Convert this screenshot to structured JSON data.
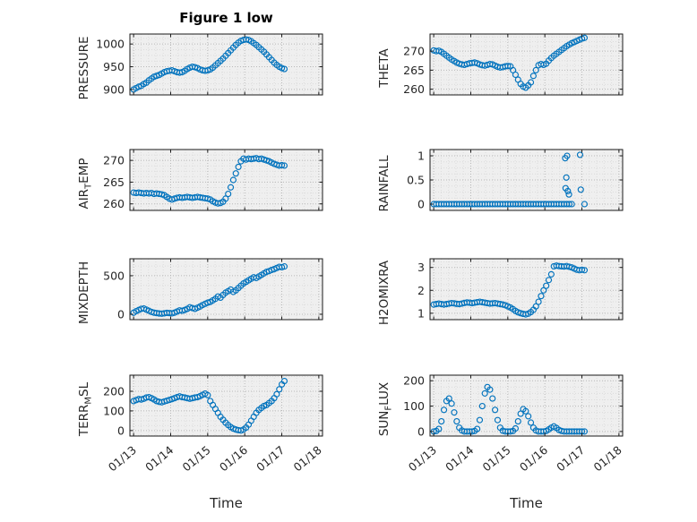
{
  "figure": {
    "title": "Figure 1 low",
    "x_axis_label": "Time",
    "marker_color": "#0072BD",
    "plot_bg": "#efefef",
    "xlim": [
      12.9,
      18.1
    ],
    "xticks": [
      13,
      14,
      15,
      16,
      17,
      18
    ],
    "xticklabels": [
      "01/13",
      "01/14",
      "01/15",
      "01/16",
      "01/17",
      "01/18"
    ]
  },
  "time_days": [
    13.0,
    13.069,
    13.138,
    13.207,
    13.276,
    13.345,
    13.414,
    13.483,
    13.552,
    13.621,
    13.69,
    13.759,
    13.828,
    13.897,
    13.966,
    14.035,
    14.104,
    14.173,
    14.242,
    14.311,
    14.38,
    14.449,
    14.518,
    14.587,
    14.656,
    14.725,
    14.794,
    14.863,
    14.932,
    15.001,
    15.07,
    15.139,
    15.208,
    15.277,
    15.346,
    15.415,
    15.484,
    15.553,
    15.622,
    15.691,
    15.76,
    15.829,
    15.898,
    15.967,
    16.036,
    16.105,
    16.174,
    16.243,
    16.312,
    16.381,
    16.45,
    16.519,
    16.588,
    16.657,
    16.726,
    16.795,
    16.864,
    16.933,
    17.002,
    17.071
  ],
  "chart_data": [
    {
      "type": "scatter",
      "ylabel": "PRESSURE",
      "row": 0,
      "col": 0,
      "ylim": [
        888,
        1022
      ],
      "yticks": [
        900,
        950,
        1000
      ],
      "y": [
        900,
        903,
        906,
        908,
        912,
        915,
        920,
        924,
        928,
        930,
        932,
        935,
        938,
        940,
        941,
        942,
        940,
        938,
        937,
        938,
        941,
        945,
        948,
        950,
        949,
        947,
        944,
        942,
        941,
        942,
        944,
        948,
        953,
        958,
        963,
        968,
        974,
        980,
        986,
        992,
        998,
        1003,
        1007,
        1009,
        1010,
        1009,
        1006,
        1002,
        998,
        993,
        988,
        983,
        977,
        971,
        965,
        959,
        954,
        950,
        947,
        945
      ]
    },
    {
      "type": "scatter",
      "ylabel": "THETA",
      "row": 0,
      "col": 1,
      "ylim": [
        258.5,
        274.5
      ],
      "yticks": [
        260,
        265,
        270
      ],
      "y": [
        270.2,
        270.0,
        270.1,
        269.8,
        269.3,
        268.8,
        268.3,
        267.8,
        267.4,
        267.0,
        266.7,
        266.5,
        266.4,
        266.6,
        266.8,
        266.9,
        267.0,
        266.8,
        266.5,
        266.3,
        266.2,
        266.4,
        266.6,
        266.5,
        266.2,
        265.9,
        265.7,
        265.8,
        266.0,
        266.1,
        266.0,
        265.0,
        263.8,
        262.5,
        261.4,
        260.7,
        260.4,
        261.0,
        261.8,
        263.5,
        265.0,
        266.3,
        266.6,
        266.4,
        266.7,
        267.5,
        268.2,
        268.8,
        269.3,
        269.8,
        270.3,
        270.8,
        271.3,
        271.7,
        272.1,
        272.4,
        272.7,
        273.0,
        273.3,
        273.5
      ]
    },
    {
      "type": "scatter",
      "ylabel": "AIR_TEMP",
      "row": 1,
      "col": 0,
      "ylim": [
        258.5,
        272.5
      ],
      "yticks": [
        260,
        265,
        270
      ],
      "y": [
        262.6,
        262.5,
        262.6,
        262.5,
        262.4,
        262.5,
        262.4,
        262.5,
        262.3,
        262.4,
        262.3,
        262.2,
        262.0,
        261.6,
        261.2,
        261.0,
        261.2,
        261.4,
        261.5,
        261.4,
        261.5,
        261.6,
        261.5,
        261.4,
        261.5,
        261.6,
        261.5,
        261.4,
        261.3,
        261.2,
        261.0,
        260.6,
        260.3,
        260.1,
        260.2,
        260.5,
        261.2,
        262.3,
        263.8,
        265.5,
        267.0,
        268.5,
        269.8,
        270.4,
        270.2,
        270.4,
        270.3,
        270.4,
        270.5,
        270.3,
        270.4,
        270.2,
        270.0,
        269.8,
        269.5,
        269.2,
        269.0,
        268.8,
        268.9,
        268.8
      ]
    },
    {
      "type": "scatter",
      "ylabel": "RAINFALL",
      "row": 1,
      "col": 1,
      "ylim": [
        -0.13,
        1.13
      ],
      "yticks": [
        0,
        0.5,
        1
      ],
      "y": [
        0,
        0,
        0,
        0,
        0,
        0,
        0,
        0,
        0,
        0,
        0,
        0,
        0,
        0,
        0,
        0,
        0,
        0,
        0,
        0,
        0,
        0,
        0,
        0,
        0,
        0,
        0,
        0,
        0,
        0,
        0,
        0,
        0,
        0,
        0,
        0,
        0,
        0,
        0,
        0,
        0,
        0,
        0,
        0,
        0,
        0,
        0,
        0,
        0,
        0,
        0,
        0,
        0,
        0,
        0,
        null,
        null,
        null,
        null,
        0
      ],
      "extra_points": [
        [
          16.55,
          0.95
        ],
        [
          16.6,
          1.0
        ],
        [
          16.58,
          0.55
        ],
        [
          16.56,
          0.33
        ],
        [
          16.62,
          0.27
        ],
        [
          16.65,
          0.2
        ],
        [
          16.95,
          1.02
        ],
        [
          16.97,
          0.3
        ]
      ]
    },
    {
      "type": "scatter",
      "ylabel": "MIXDEPTH",
      "row": 2,
      "col": 0,
      "ylim": [
        -70,
        720
      ],
      "yticks": [
        0,
        500
      ],
      "y": [
        20,
        40,
        55,
        70,
        75,
        60,
        45,
        30,
        20,
        15,
        10,
        8,
        12,
        18,
        15,
        12,
        20,
        35,
        50,
        45,
        55,
        70,
        90,
        80,
        70,
        85,
        100,
        120,
        135,
        150,
        160,
        180,
        200,
        230,
        215,
        250,
        280,
        300,
        320,
        290,
        310,
        340,
        370,
        400,
        420,
        440,
        460,
        480,
        470,
        490,
        510,
        530,
        550,
        560,
        575,
        585,
        600,
        615,
        610,
        620
      ]
    },
    {
      "type": "scatter",
      "ylabel": "H2OMIXRA",
      "row": 2,
      "col": 1,
      "ylim": [
        0.72,
        3.38
      ],
      "yticks": [
        1,
        2,
        3
      ],
      "y": [
        1.38,
        1.4,
        1.42,
        1.4,
        1.38,
        1.4,
        1.42,
        1.44,
        1.43,
        1.41,
        1.4,
        1.42,
        1.45,
        1.47,
        1.46,
        1.44,
        1.46,
        1.48,
        1.5,
        1.48,
        1.46,
        1.44,
        1.42,
        1.43,
        1.44,
        1.42,
        1.4,
        1.38,
        1.35,
        1.3,
        1.25,
        1.18,
        1.1,
        1.04,
        1.0,
        0.97,
        0.95,
        0.98,
        1.05,
        1.15,
        1.3,
        1.5,
        1.75,
        2.0,
        2.2,
        2.45,
        2.7,
        3.05,
        3.08,
        3.06,
        3.05,
        3.04,
        3.06,
        3.03,
        3.0,
        2.95,
        2.9,
        2.88,
        2.9,
        2.88
      ]
    },
    {
      "type": "scatter",
      "ylabel": "TERR_MSL",
      "row": 3,
      "col": 0,
      "ylim": [
        -28,
        282
      ],
      "yticks": [
        0,
        100,
        200
      ],
      "y": [
        150,
        155,
        160,
        158,
        162,
        168,
        170,
        165,
        158,
        150,
        146,
        144,
        148,
        152,
        156,
        160,
        165,
        170,
        174,
        170,
        168,
        165,
        162,
        165,
        168,
        170,
        175,
        182,
        188,
        180,
        150,
        130,
        110,
        90,
        70,
        55,
        40,
        28,
        18,
        10,
        5,
        2,
        0,
        5,
        15,
        30,
        50,
        70,
        90,
        105,
        115,
        125,
        130,
        140,
        150,
        165,
        185,
        210,
        235,
        252
      ]
    },
    {
      "type": "scatter",
      "ylabel": "SUN_FLUX",
      "row": 3,
      "col": 1,
      "ylim": [
        -18,
        222
      ],
      "yticks": [
        0,
        100,
        200
      ],
      "y": [
        0,
        2,
        10,
        40,
        85,
        120,
        130,
        110,
        75,
        40,
        15,
        4,
        0,
        0,
        0,
        0,
        2,
        10,
        45,
        100,
        150,
        175,
        165,
        130,
        85,
        45,
        15,
        3,
        0,
        0,
        0,
        2,
        12,
        40,
        70,
        88,
        80,
        60,
        35,
        15,
        4,
        0,
        0,
        0,
        2,
        8,
        15,
        20,
        14,
        6,
        2,
        0,
        0,
        0,
        0,
        0,
        0,
        0,
        0,
        0
      ]
    }
  ]
}
